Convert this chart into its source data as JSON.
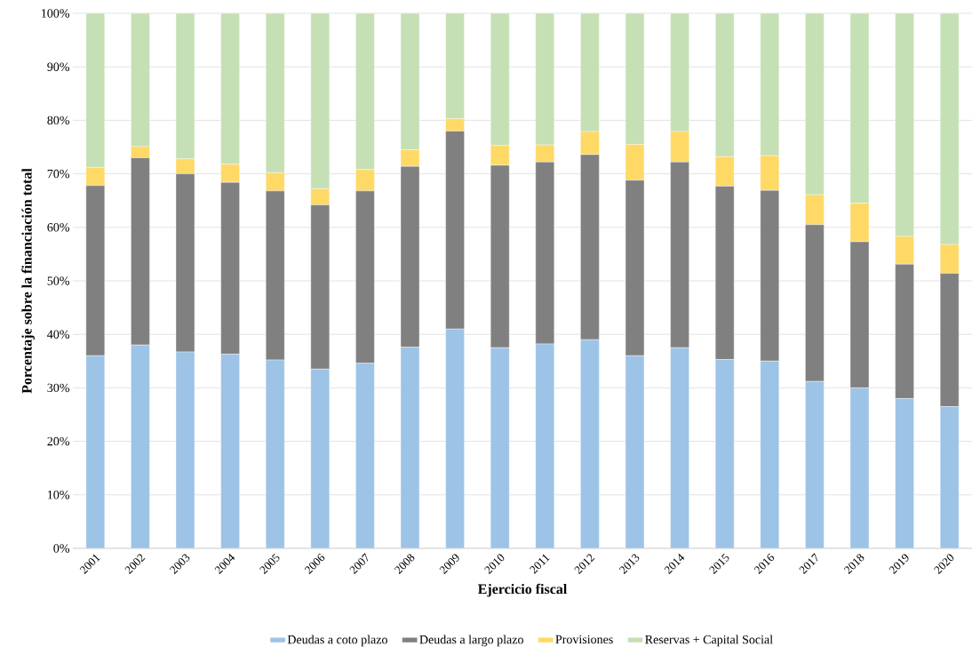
{
  "chart_data": {
    "type": "bar",
    "stacked": true,
    "xlabel": "Ejercicio fiscal",
    "ylabel": "Porcentaje sobre la financiación total",
    "categories": [
      "2001",
      "2002",
      "2003",
      "2004",
      "2005",
      "2006",
      "2007",
      "2008",
      "2009",
      "2010",
      "2011",
      "2012",
      "2013",
      "2014",
      "2015",
      "2016",
      "2017",
      "2018",
      "2019",
      "2020"
    ],
    "series": [
      {
        "name": "Deudas a coto plazo",
        "color": "#9dc3e6",
        "values": [
          36,
          38,
          36.7,
          36.3,
          35.2,
          33.5,
          34.6,
          37.6,
          41,
          37.5,
          38.2,
          39,
          36,
          37.5,
          35.3,
          35,
          31.2,
          30,
          28,
          26.5
        ]
      },
      {
        "name": "Deudas a largo plazo",
        "color": "#808080",
        "values": [
          31.8,
          35,
          33.3,
          32.1,
          31.6,
          30.7,
          32.2,
          33.8,
          37,
          34.1,
          34,
          34.6,
          32.8,
          34.7,
          32.4,
          31.9,
          29.3,
          27.3,
          25.1,
          24.9
        ]
      },
      {
        "name": "Provisiones",
        "color": "#ffd966",
        "values": [
          3.4,
          2.1,
          2.8,
          3.4,
          3.4,
          3.0,
          4.0,
          3.1,
          2.3,
          3.7,
          3.2,
          4.3,
          6.7,
          5.7,
          5.5,
          6.5,
          5.6,
          7.2,
          5.2,
          5.4
        ]
      },
      {
        "name": "Reservas + Capital Social",
        "color": "#c5e0b4",
        "values": [
          28.8,
          24.9,
          27.2,
          28.2,
          29.8,
          32.8,
          29.2,
          25.5,
          19.7,
          24.7,
          24.6,
          22.1,
          24.5,
          22.1,
          26.8,
          26.6,
          33.9,
          35.5,
          41.7,
          43.2
        ]
      }
    ],
    "ylim": [
      0,
      100
    ],
    "yticks": [
      {
        "value": 0,
        "label": "0%"
      },
      {
        "value": 10,
        "label": "10%"
      },
      {
        "value": 20,
        "label": "20%"
      },
      {
        "value": 30,
        "label": "30%"
      },
      {
        "value": 40,
        "label": "40%"
      },
      {
        "value": 50,
        "label": "50%"
      },
      {
        "value": 60,
        "label": "60%"
      },
      {
        "value": 70,
        "label": "70%"
      },
      {
        "value": 80,
        "label": "80%"
      },
      {
        "value": 90,
        "label": "90%"
      },
      {
        "value": 100,
        "label": "100%"
      }
    ],
    "grid": "y",
    "legend": "bottom"
  }
}
